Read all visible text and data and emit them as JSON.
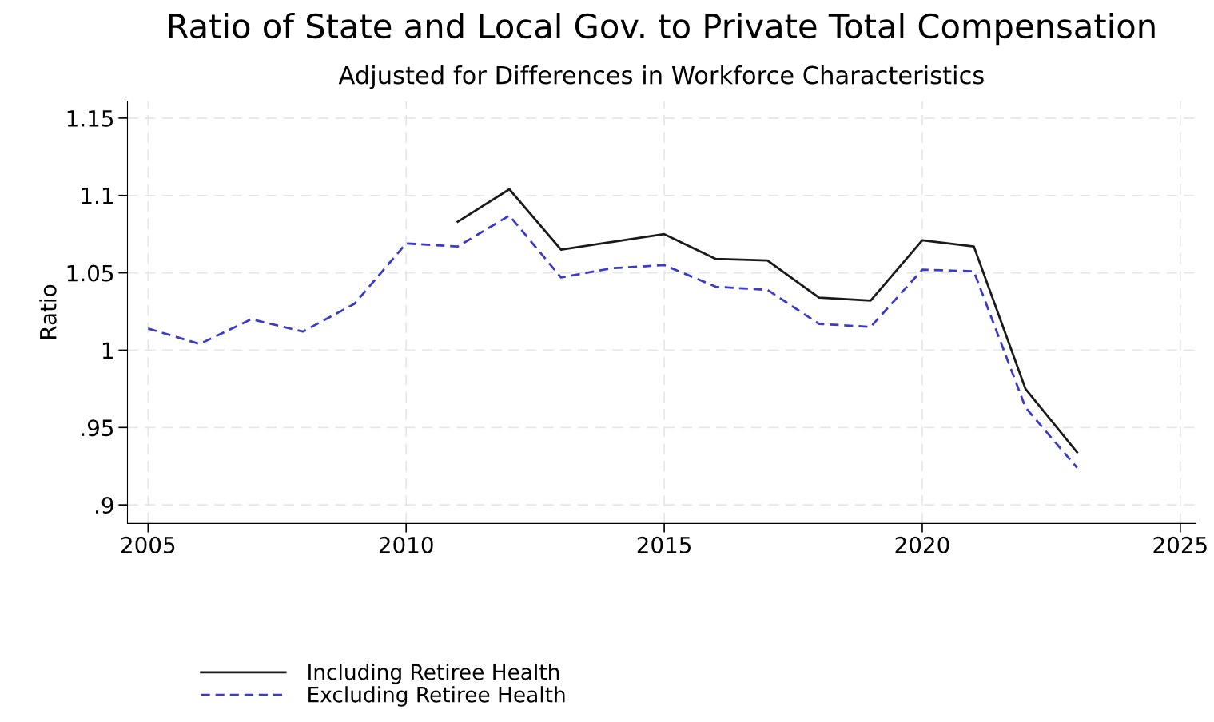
{
  "chart_data": {
    "type": "line",
    "title": "Ratio of State and Local Gov. to Private Total Compensation",
    "subtitle": "Adjusted for Differences in Workforce Characteristics",
    "ylabel": "Ratio",
    "x": [
      2005,
      2006,
      2007,
      2008,
      2009,
      2010,
      2011,
      2012,
      2013,
      2014,
      2015,
      2016,
      2017,
      2018,
      2019,
      2020,
      2021,
      2022,
      2023
    ],
    "series": [
      {
        "name": "Including Retiree Health",
        "color": "#1a1a1a",
        "line_style": "solid",
        "values": [
          null,
          null,
          null,
          null,
          null,
          null,
          1.083,
          1.104,
          1.065,
          1.07,
          1.075,
          1.059,
          1.058,
          1.034,
          1.032,
          1.071,
          1.067,
          0.975,
          0.934
        ]
      },
      {
        "name": "Excluding Retiree Health",
        "color": "#3b3bc8",
        "line_style": "dashed",
        "values": [
          1.014,
          1.004,
          1.02,
          1.012,
          1.03,
          1.069,
          1.067,
          1.087,
          1.047,
          1.053,
          1.055,
          1.041,
          1.039,
          1.017,
          1.015,
          1.052,
          1.051,
          0.963,
          0.924
        ]
      }
    ],
    "xlim": [
      2004.6,
      2025.3
    ],
    "xticks": [
      2005,
      2010,
      2015,
      2020,
      2025
    ],
    "ylim": [
      0.888,
      1.161
    ],
    "yticks": [
      {
        "value": 0.9,
        "label": ".9"
      },
      {
        "value": 0.95,
        "label": ".95"
      },
      1,
      1.05,
      1.1,
      1.15
    ],
    "grid": true,
    "legend": "bottom left",
    "marker": "none"
  }
}
